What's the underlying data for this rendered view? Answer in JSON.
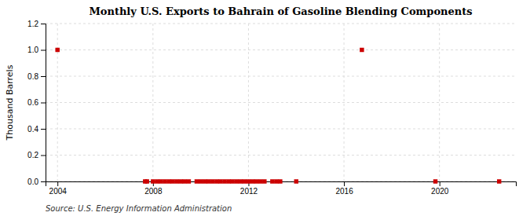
{
  "chart_data": {
    "type": "scatter",
    "title": "Monthly U.S. Exports to Bahrain of Gasoline Blending Components",
    "y_label": "Thousand Barrels",
    "annotations": [
      "Source: U.S. Energy Information Administration"
    ],
    "series": [
      {
        "x": [
          2004.0,
          2016.75,
          2007.67,
          2007.75,
          2008.0,
          2008.17,
          2008.33,
          2008.5,
          2008.67,
          2008.83,
          2009.0,
          2009.17,
          2009.33,
          2009.5,
          2009.83,
          2010.0,
          2010.17,
          2010.33,
          2010.5,
          2010.67,
          2010.83,
          2011.0,
          2011.17,
          2011.33,
          2011.5,
          2011.67,
          2011.83,
          2012.0,
          2012.17,
          2012.33,
          2012.5,
          2012.67,
          2013.0,
          2013.17,
          2013.33,
          2014.0,
          2019.83,
          2022.5
        ],
        "values": [
          1.0,
          1.0,
          0.0,
          0.0,
          0.0,
          0.0,
          0.0,
          0.0,
          0.0,
          0.0,
          0.0,
          0.0,
          0.0,
          0.0,
          0.0,
          0.0,
          0.0,
          0.0,
          0.0,
          0.0,
          0.0,
          0.0,
          0.0,
          0.0,
          0.0,
          0.0,
          0.0,
          0.0,
          0.0,
          0.0,
          0.0,
          0.0,
          0.0,
          0.0,
          0.0,
          0.0,
          0.0,
          0.0
        ],
        "color": "#cc0000",
        "marker": "square"
      }
    ],
    "xlim": [
      2003.5,
      2023.2
    ],
    "xticks": [
      2004,
      2008,
      2012,
      2016,
      2020
    ],
    "ylim": [
      0.0,
      1.2
    ],
    "yticks": [
      {
        "value": 0.0,
        "label": "0.0"
      },
      0.2,
      0.4,
      0.6,
      0.8,
      {
        "value": 1.0,
        "label": "1.0"
      },
      1.2
    ],
    "grid": true
  }
}
